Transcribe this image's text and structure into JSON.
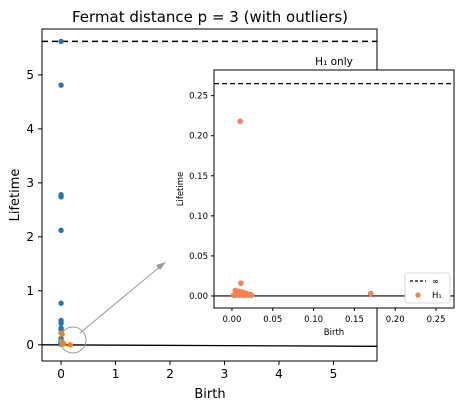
{
  "chart_data": [
    {
      "type": "scatter",
      "title": "Fermat distance p = 3 (with outliers)",
      "xlabel": "Birth",
      "ylabel": "Lifetime",
      "xlim": [
        -0.35,
        5.8
      ],
      "ylim": [
        -0.3,
        5.85
      ],
      "xticks": [
        0,
        1,
        2,
        3,
        4,
        5
      ],
      "yticks": [
        0,
        1,
        2,
        3,
        4,
        5
      ],
      "infinity_line_y": 5.62,
      "series": [
        {
          "color": "#1f77b4",
          "points": [
            [
              0,
              5.62
            ],
            [
              0,
              4.81
            ],
            [
              0,
              2.78
            ],
            [
              0,
              2.74
            ],
            [
              0,
              2.12
            ],
            [
              0,
              0.77
            ],
            [
              0,
              0.45
            ],
            [
              0,
              0.4
            ],
            [
              0,
              0.31
            ],
            [
              0,
              0.28
            ],
            [
              0,
              0.12
            ],
            [
              0,
              0.08
            ],
            [
              0,
              0.05
            ],
            [
              0,
              0.03
            ],
            [
              0,
              0.02
            ],
            [
              0,
              0.01
            ]
          ]
        },
        {
          "color": "#ff7f0e",
          "points": [
            [
              0.0,
              0.22
            ],
            [
              0.02,
              0.2
            ],
            [
              0.01,
              0.06
            ],
            [
              0.03,
              0.04
            ],
            [
              0.05,
              0.02
            ],
            [
              0.02,
              0.01
            ],
            [
              0.17,
              0.0
            ]
          ]
        }
      ]
    },
    {
      "type": "scatter",
      "title": "H₁ only",
      "xlabel": "Birth",
      "ylabel": "Lifetime",
      "xlim": [
        -0.022,
        0.272
      ],
      "ylim": [
        -0.015,
        0.282
      ],
      "xticks": [
        "0.00",
        "0.05",
        "0.10",
        "0.15",
        "0.20",
        "0.25"
      ],
      "yticks": [
        "0.00",
        "0.05",
        "0.10",
        "0.15",
        "0.20",
        "0.25"
      ],
      "infinity_line_y": 0.265,
      "legend": {
        "position": "bottom-right",
        "entries": [
          "∞",
          "H₁"
        ]
      },
      "series": [
        {
          "name": "H₁",
          "color": "#ff7f50",
          "points": [
            [
              0.01,
              0.218
            ],
            [
              0.011,
              0.016
            ],
            [
              0.004,
              0.007
            ],
            [
              0.008,
              0.006
            ],
            [
              0.012,
              0.005
            ],
            [
              0.015,
              0.004
            ],
            [
              0.006,
              0.003
            ],
            [
              0.01,
              0.002
            ],
            [
              0.014,
              0.002
            ],
            [
              0.018,
              0.003
            ],
            [
              0.022,
              0.002
            ],
            [
              0.002,
              0.001
            ],
            [
              0.005,
              0.002
            ],
            [
              0.009,
              0.001
            ],
            [
              0.013,
              0.001
            ],
            [
              0.016,
              0.001
            ],
            [
              0.02,
              0.001
            ],
            [
              0.024,
              0.001
            ],
            [
              0.003,
              0.0005
            ],
            [
              0.17,
              0.003
            ]
          ]
        }
      ]
    }
  ]
}
